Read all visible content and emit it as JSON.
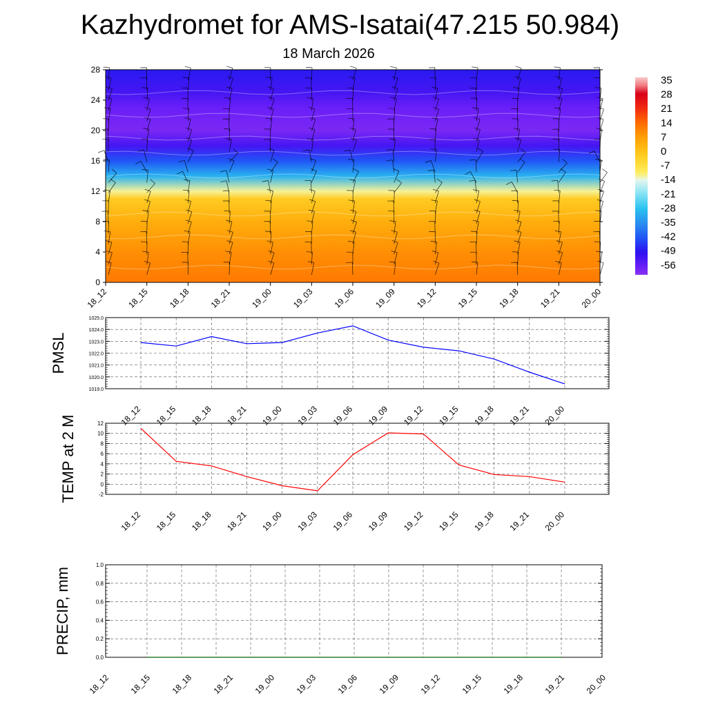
{
  "header": {
    "title": "Kazhydromet for AMS-Isatai(47.215 50.984)",
    "subtitle": "18 March 2026"
  },
  "colors": {
    "pressure_line": "#0000ff",
    "temperature_line": "#ff0000",
    "precip_line": "#006400",
    "grid": "#555555"
  },
  "chart_data": [
    {
      "type": "heatmap",
      "title": "",
      "x_ticks": [
        "18_12",
        "18_15",
        "18_18",
        "18_21",
        "19_00",
        "19_03",
        "19_06",
        "19_09",
        "19_12",
        "19_15",
        "19_18",
        "19_21",
        "20_00"
      ],
      "y_ticks": [
        0,
        4,
        8,
        12,
        16,
        20,
        24,
        28
      ],
      "ylim": [
        0,
        28
      ],
      "color_levels": [
        -56,
        -49,
        -42,
        -35,
        -28,
        -21,
        -14,
        -7,
        0,
        7,
        14,
        21,
        28,
        35
      ],
      "value_range": [
        -60,
        36
      ],
      "vertical_profile": [
        {
          "level": 0,
          "value": 12
        },
        {
          "level": 4,
          "value": 9
        },
        {
          "level": 8,
          "value": 4
        },
        {
          "level": 11,
          "value": -2
        },
        {
          "level": 12,
          "value": -12
        },
        {
          "level": 14,
          "value": -30
        },
        {
          "level": 16,
          "value": -42
        },
        {
          "level": 18,
          "value": -52
        },
        {
          "level": 20,
          "value": -58
        },
        {
          "level": 23,
          "value": -56
        },
        {
          "level": 25,
          "value": -52
        },
        {
          "level": 28,
          "value": -48
        }
      ],
      "overlay": "wind barbs"
    },
    {
      "type": "line",
      "ylabel": "PMSL",
      "categories": [
        "18_12",
        "18_15",
        "18_18",
        "18_21",
        "19_00",
        "19_03",
        "19_06",
        "19_09",
        "19_12",
        "19_15",
        "19_18",
        "19_21",
        "20_00"
      ],
      "series": [
        {
          "values": [
            1022.9,
            1022.6,
            1023.4,
            1022.8,
            1022.9,
            1023.7,
            1024.3,
            1023.1,
            1022.5,
            1022.2,
            1021.5,
            1020.4,
            1019.4
          ]
        }
      ],
      "y_ticks": [
        "1019.0",
        "1020.0",
        "1021.0",
        "1022.0",
        "1023.0",
        "1024.0",
        "1025.0"
      ],
      "ylim": [
        1019,
        1025
      ],
      "grid": true
    },
    {
      "type": "line",
      "ylabel": "TEMP at 2 M",
      "categories": [
        "18_12",
        "18_15",
        "18_18",
        "18_21",
        "19_00",
        "19_03",
        "19_06",
        "19_09",
        "19_12",
        "19_15",
        "19_18",
        "19_21",
        "20_00"
      ],
      "series": [
        {
          "values": [
            11.0,
            4.5,
            3.6,
            1.5,
            -0.3,
            -1.3,
            5.8,
            10.1,
            9.9,
            3.8,
            1.9,
            1.5,
            0.4
          ]
        }
      ],
      "y_ticks": [
        "-2",
        "0",
        "2",
        "4",
        "6",
        "8",
        "10",
        "12"
      ],
      "ylim": [
        -2,
        12
      ],
      "grid": true
    },
    {
      "type": "line",
      "ylabel": "PRECIP, mm",
      "categories": [
        "18_12",
        "18_15",
        "18_18",
        "18_21",
        "19_00",
        "19_03",
        "19_06",
        "19_09",
        "19_12",
        "19_15",
        "19_18",
        "19_21",
        "20_00"
      ],
      "series": [
        {
          "values": [
            0,
            0,
            0,
            0,
            0,
            0,
            0,
            0,
            0,
            0,
            0,
            0,
            0
          ]
        }
      ],
      "y_ticks": [
        "0.0",
        "0.2",
        "0.4",
        "0.6",
        "0.8",
        "1.0"
      ],
      "ylim": [
        0,
        1
      ],
      "grid": true
    }
  ]
}
